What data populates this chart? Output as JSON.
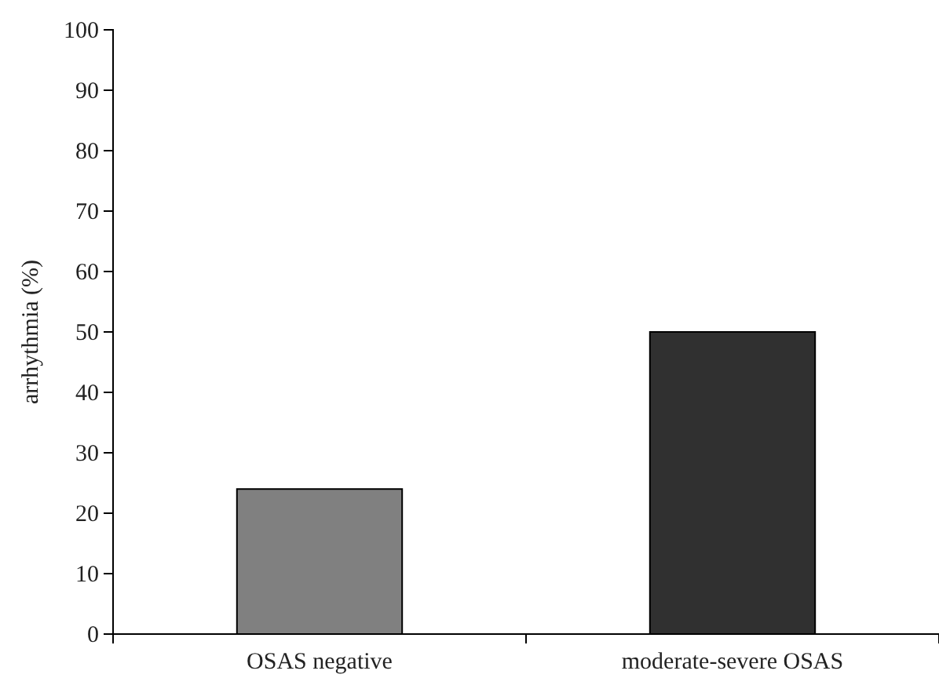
{
  "chart_data": {
    "type": "bar",
    "ylabel": "arrhythmia (%)",
    "categories": [
      "OSAS negative",
      "moderate-severe OSAS"
    ],
    "values": [
      24,
      50
    ],
    "colors": [
      "#808080",
      "#303030"
    ],
    "ylim": [
      0,
      100
    ],
    "yticks": [
      0,
      10,
      20,
      30,
      40,
      50,
      60,
      70,
      80,
      90,
      100
    ],
    "grid": false
  }
}
